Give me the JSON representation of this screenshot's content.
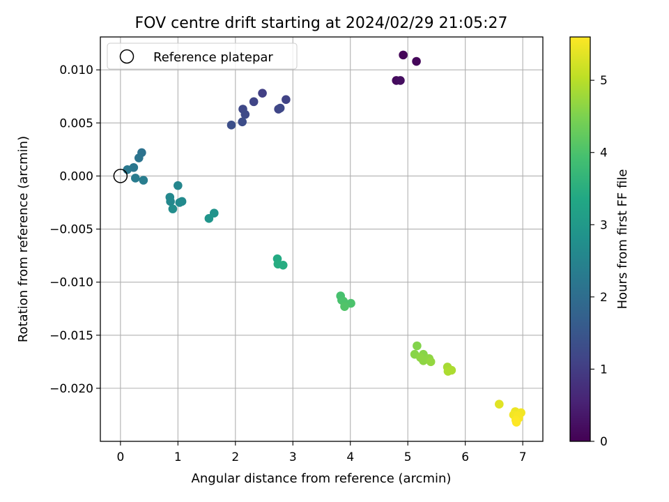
{
  "chart_data": {
    "type": "scatter",
    "title": "FOV centre drift starting at 2024/02/29 21:05:27",
    "xlabel": "Angular distance from reference (arcmin)",
    "ylabel": "Rotation from reference (arcmin)",
    "xlim": [
      -0.35,
      7.35
    ],
    "ylim": [
      -0.025,
      0.0131
    ],
    "xticks": [
      0,
      1,
      2,
      3,
      4,
      5,
      6,
      7
    ],
    "xtick_labels": [
      "0",
      "1",
      "2",
      "3",
      "4",
      "5",
      "6",
      "7"
    ],
    "yticks": [
      -0.02,
      -0.015,
      -0.01,
      -0.005,
      0.0,
      0.005,
      0.01
    ],
    "ytick_labels": [
      "−0.020",
      "−0.015",
      "−0.010",
      "−0.005",
      "0.000",
      "0.005",
      "0.010"
    ],
    "grid": true,
    "legend": {
      "location": "upper-left",
      "label": "Reference platepar"
    },
    "reference_point": {
      "x": 0.0,
      "y": 0.0
    },
    "colorbar": {
      "label": "Hours from first FF file",
      "min": 0,
      "max": 5.6,
      "ticks": [
        0,
        1,
        2,
        3,
        4,
        5
      ],
      "tick_labels": [
        "0",
        "1",
        "2",
        "3",
        "4",
        "5"
      ],
      "colormap": "viridis"
    },
    "points": [
      {
        "x": 4.92,
        "y": 0.0114,
        "c": 0.05
      },
      {
        "x": 5.15,
        "y": 0.0108,
        "c": 0.1
      },
      {
        "x": 4.8,
        "y": 0.009,
        "c": 0.15
      },
      {
        "x": 4.87,
        "y": 0.009,
        "c": 0.2
      },
      {
        "x": 2.47,
        "y": 0.0078,
        "c": 1.05
      },
      {
        "x": 2.88,
        "y": 0.0072,
        "c": 1.1
      },
      {
        "x": 2.32,
        "y": 0.007,
        "c": 1.15
      },
      {
        "x": 2.75,
        "y": 0.0063,
        "c": 1.15
      },
      {
        "x": 2.78,
        "y": 0.0064,
        "c": 1.2
      },
      {
        "x": 2.13,
        "y": 0.0063,
        "c": 1.2
      },
      {
        "x": 2.17,
        "y": 0.0058,
        "c": 1.25
      },
      {
        "x": 2.12,
        "y": 0.0051,
        "c": 1.3
      },
      {
        "x": 1.93,
        "y": 0.0048,
        "c": 1.35
      },
      {
        "x": 0.37,
        "y": 0.0022,
        "c": 2.1
      },
      {
        "x": 0.32,
        "y": 0.0017,
        "c": 2.15
      },
      {
        "x": 0.23,
        "y": 0.0008,
        "c": 2.2
      },
      {
        "x": 0.12,
        "y": 0.0006,
        "c": 2.25
      },
      {
        "x": 0.26,
        "y": -0.0002,
        "c": 2.3
      },
      {
        "x": 0.4,
        "y": -0.0004,
        "c": 2.35
      },
      {
        "x": 1.0,
        "y": -0.0009,
        "c": 2.55
      },
      {
        "x": 0.86,
        "y": -0.002,
        "c": 2.6
      },
      {
        "x": 0.87,
        "y": -0.0024,
        "c": 2.6
      },
      {
        "x": 1.07,
        "y": -0.0024,
        "c": 2.65
      },
      {
        "x": 1.03,
        "y": -0.0025,
        "c": 2.65
      },
      {
        "x": 0.91,
        "y": -0.0031,
        "c": 2.7
      },
      {
        "x": 1.63,
        "y": -0.0035,
        "c": 2.85
      },
      {
        "x": 1.54,
        "y": -0.004,
        "c": 2.9
      },
      {
        "x": 2.73,
        "y": -0.0078,
        "c": 3.4
      },
      {
        "x": 2.74,
        "y": -0.0083,
        "c": 3.45
      },
      {
        "x": 2.83,
        "y": -0.0084,
        "c": 3.45
      },
      {
        "x": 3.83,
        "y": -0.0113,
        "c": 3.95
      },
      {
        "x": 3.85,
        "y": -0.0117,
        "c": 3.95
      },
      {
        "x": 3.88,
        "y": -0.0118,
        "c": 4.0
      },
      {
        "x": 4.01,
        "y": -0.012,
        "c": 4.0
      },
      {
        "x": 3.9,
        "y": -0.0123,
        "c": 4.05
      },
      {
        "x": 5.16,
        "y": -0.016,
        "c": 4.55
      },
      {
        "x": 5.12,
        "y": -0.0168,
        "c": 4.6
      },
      {
        "x": 5.27,
        "y": -0.0168,
        "c": 4.6
      },
      {
        "x": 5.22,
        "y": -0.0171,
        "c": 4.65
      },
      {
        "x": 5.37,
        "y": -0.0172,
        "c": 4.65
      },
      {
        "x": 5.27,
        "y": -0.0174,
        "c": 4.65
      },
      {
        "x": 5.4,
        "y": -0.0175,
        "c": 4.7
      },
      {
        "x": 5.69,
        "y": -0.018,
        "c": 4.85
      },
      {
        "x": 5.76,
        "y": -0.0183,
        "c": 4.9
      },
      {
        "x": 5.7,
        "y": -0.0184,
        "c": 4.9
      },
      {
        "x": 6.59,
        "y": -0.0215,
        "c": 5.35
      },
      {
        "x": 6.87,
        "y": -0.0222,
        "c": 5.45
      },
      {
        "x": 6.97,
        "y": -0.0223,
        "c": 5.5
      },
      {
        "x": 6.84,
        "y": -0.0225,
        "c": 5.5
      },
      {
        "x": 6.91,
        "y": -0.0226,
        "c": 5.55
      },
      {
        "x": 6.93,
        "y": -0.0228,
        "c": 5.55
      },
      {
        "x": 6.88,
        "y": -0.023,
        "c": 5.58
      },
      {
        "x": 6.89,
        "y": -0.0232,
        "c": 5.6
      }
    ]
  }
}
